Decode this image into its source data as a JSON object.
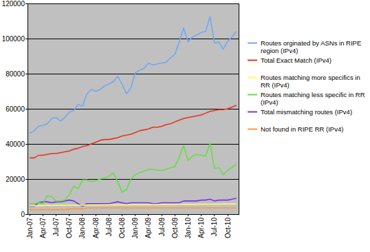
{
  "chart_data": {
    "type": "line",
    "categories": [
      "Jan-07",
      null,
      null,
      "Apr-07",
      null,
      null,
      "Jul-07",
      null,
      null,
      "Oct-07",
      null,
      null,
      "Jan-08",
      null,
      null,
      "Apr-08",
      null,
      null,
      "Jul-08",
      null,
      null,
      "Oct-08",
      null,
      null,
      "Jan-09",
      null,
      null,
      "Apr-09",
      null,
      null,
      "Jul-09",
      null,
      null,
      "Oct-09",
      null,
      null,
      "Jan-10",
      null,
      null,
      "Apr-10",
      null,
      null,
      "Jul-10",
      null,
      null,
      "Oct-10",
      null,
      null
    ],
    "series": [
      {
        "name": "Routes orginated by ASNs in RIPE region (IPv4)",
        "color": "#6fa8f5",
        "values": [
          46000,
          47500,
          50000,
          50500,
          51500,
          54500,
          55000,
          53000,
          55000,
          58000,
          59000,
          62500,
          61500,
          68500,
          71000,
          70000,
          71000,
          73000,
          74000,
          75500,
          78500,
          74000,
          68500,
          72000,
          80500,
          82000,
          83000,
          86000,
          85000,
          85500,
          86000,
          86500,
          89000,
          91000,
          98000,
          106000,
          98000,
          101000,
          102000,
          103500,
          104000,
          112500,
          97500,
          98000,
          94000,
          98500,
          101000,
          104000
        ]
      },
      {
        "name": "Total Exact Match (IPv4)",
        "color": "#e8321e",
        "values": [
          32000,
          32000,
          33500,
          33500,
          34000,
          34500,
          34500,
          35000,
          35500,
          36000,
          37000,
          37500,
          38500,
          39000,
          40000,
          41000,
          42000,
          42500,
          42500,
          43000,
          43500,
          44500,
          45000,
          45500,
          46500,
          47500,
          48000,
          48500,
          49500,
          49500,
          50000,
          51000,
          51500,
          52500,
          53500,
          54500,
          55000,
          55500,
          56000,
          56500,
          57500,
          58500,
          59000,
          59500,
          59500,
          60000,
          61000,
          62000
        ]
      },
      {
        "name": "Routes matching more specifics in RR (IPv4)",
        "color": "#ffff66",
        "values": [
          4800,
          4800,
          4900,
          4900,
          5000,
          5000,
          5000,
          5000,
          5000,
          5100,
          5100,
          5100,
          5100,
          5200,
          5200,
          5200,
          5200,
          5300,
          5300,
          5300,
          5300,
          5300,
          5300,
          5400,
          5400,
          5400,
          5400,
          5400,
          5500,
          5500,
          5500,
          5500,
          5500,
          5500,
          5600,
          5600,
          5600,
          5600,
          5600,
          5700,
          5700,
          5700,
          5700,
          5700,
          5800,
          5800,
          5800,
          5800
        ]
      },
      {
        "name": "Routes matching less specific in RR (IPv4)",
        "color": "#66dd44",
        "values": [
          6000,
          6000,
          6500,
          6000,
          10500,
          10000,
          7500,
          7500,
          8000,
          11000,
          16000,
          14500,
          19500,
          19500,
          18500,
          19000,
          20000,
          20500,
          21500,
          23500,
          18500,
          12500,
          14000,
          20000,
          22500,
          23500,
          24500,
          25500,
          25500,
          25000,
          25000,
          25500,
          26500,
          27000,
          32500,
          39000,
          30500,
          33000,
          34000,
          33500,
          33000,
          40500,
          26000,
          26500,
          22500,
          25000,
          26500,
          28500
        ]
      },
      {
        "name": "Total mismatching routes (IPv4)",
        "color": "#7733ee",
        "values": [
          4500,
          4500,
          6500,
          7000,
          7000,
          6500,
          7000,
          7000,
          7500,
          8000,
          7500,
          6000,
          4500,
          6000,
          6000,
          6000,
          6000,
          6000,
          6000,
          6500,
          7000,
          6500,
          6000,
          6500,
          6500,
          6500,
          6500,
          6500,
          6000,
          6000,
          6500,
          6500,
          6500,
          6500,
          6500,
          7500,
          7500,
          7500,
          7500,
          8000,
          8000,
          8500,
          7500,
          8000,
          8000,
          8000,
          8500,
          9000
        ]
      },
      {
        "name": "Not found in RIPE RR (IPv4)",
        "color": "#ff9933",
        "values": [
          2500,
          2500,
          2500,
          2500,
          2500,
          2500,
          2500,
          2500,
          2500,
          3000,
          3000,
          3000,
          3000,
          3500,
          3500,
          3500,
          3500,
          3500,
          3500,
          3500,
          3500,
          3500,
          3500,
          3500,
          3500,
          3500,
          3500,
          3500,
          3500,
          3500,
          3500,
          3500,
          3500,
          3500,
          3500,
          3500,
          3500,
          3500,
          3500,
          3500,
          3500,
          3500,
          3500,
          3500,
          3500,
          3500,
          3500,
          3500
        ]
      }
    ],
    "ylim": [
      0,
      120000
    ],
    "yticks": [
      0,
      20000,
      40000,
      60000,
      80000,
      100000,
      120000
    ],
    "grid": true,
    "legend": "right"
  }
}
